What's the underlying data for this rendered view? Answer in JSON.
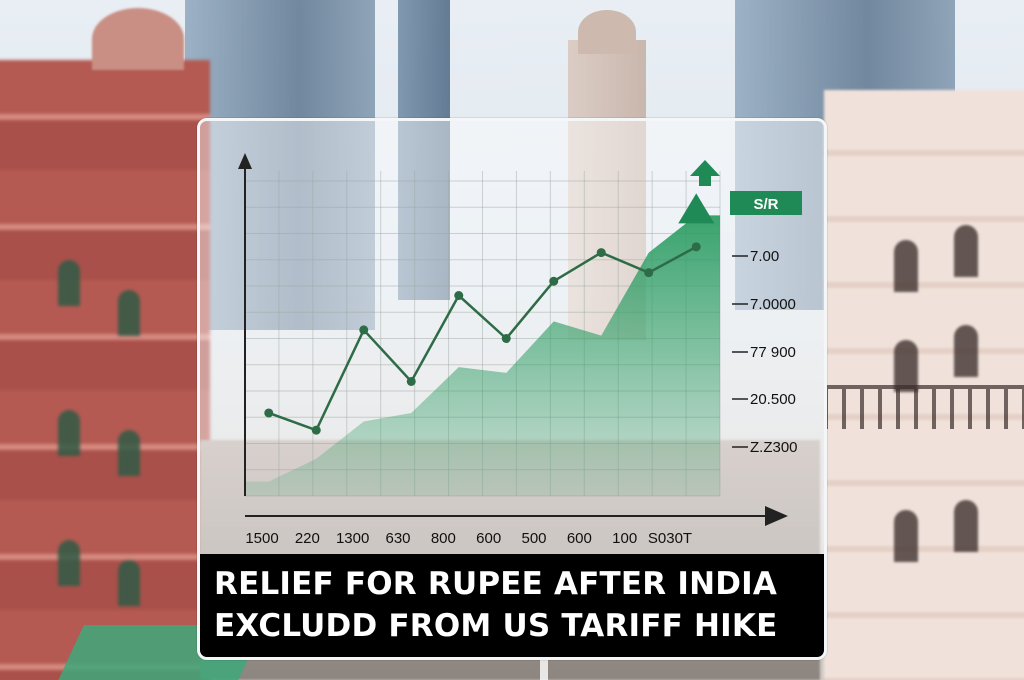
{
  "headline": {
    "line1": "RELIEF FOR RUPEE AFTER INDIA",
    "line2": "EXCLUDD FROM US TARIFF HIKE"
  },
  "colors": {
    "accent_green": "#1f8a55",
    "area_green": "#2f9e65",
    "line_dark": "#2e6b47",
    "banner_bg": "#000000",
    "badge_bg": "#1f8a55"
  },
  "chart_data": {
    "type": "line",
    "title": "",
    "xlabel": "",
    "ylabel": "",
    "badge": "S/R",
    "x_tick_labels": [
      "1500",
      "220",
      "1300",
      "630",
      "800",
      "600",
      "500",
      "600",
      "100",
      "S030T"
    ],
    "y_left_tick_labels": [
      "",
      "",
      "",
      "",
      "",
      "",
      "",
      "",
      "",
      "",
      "",
      "",
      ""
    ],
    "y_right_tick_labels": [
      "7.00",
      "7.0000",
      "77 900",
      "20.500",
      "Z.Z300"
    ],
    "series": [
      {
        "values": [
          2.9,
          2.3,
          5.8,
          4.0,
          7.0,
          5.5,
          7.5,
          8.5,
          7.8,
          8.7
        ]
      }
    ],
    "area_values": [
      0.5,
      1.3,
      2.6,
      2.9,
      4.5,
      4.3,
      6.1,
      5.6,
      8.5,
      9.8
    ],
    "x_range": [
      0,
      10
    ],
    "y_range": [
      0,
      11
    ],
    "grid": true,
    "trend_arrow": "up"
  }
}
